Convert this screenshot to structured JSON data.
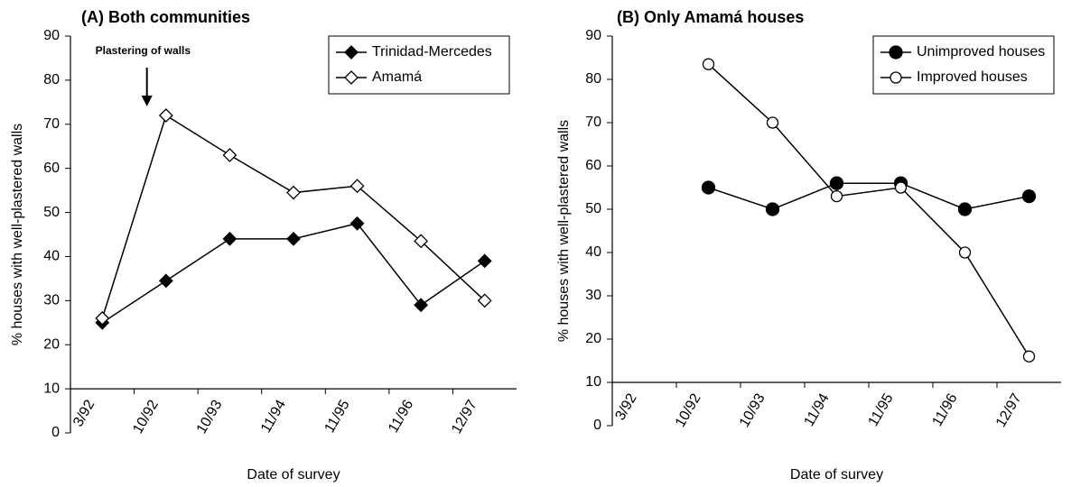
{
  "chart_data": [
    {
      "type": "line",
      "title": "(A) Both communities",
      "xlabel": "Date of survey",
      "ylabel": "% houses with well-plastered walls",
      "categories": [
        "3/92",
        "10/92",
        "10/93",
        "11/94",
        "11/95",
        "11/96",
        "12/97"
      ],
      "series": [
        {
          "name": "Trinidad-Mercedes",
          "color": "#000000",
          "marker": "diamond",
          "filled": true,
          "values": [
            25,
            34.5,
            44,
            44,
            47.5,
            29,
            39
          ]
        },
        {
          "name": "Amamá",
          "color": "#000000",
          "marker": "diamond",
          "filled": false,
          "values": [
            26,
            72,
            63,
            54.5,
            56,
            43.5,
            30
          ]
        }
      ],
      "annotation": "Plastering of walls",
      "ylim": [
        0,
        90
      ],
      "yticks": [
        0,
        10,
        20,
        30,
        40,
        50,
        60,
        70,
        80,
        90
      ],
      "xaxis_crosses": 10,
      "legend": "upper right"
    },
    {
      "type": "line",
      "title": "(B) Only Amamá houses",
      "xlabel": "Date of survey",
      "ylabel": "% houses with well-plastered walls",
      "categories": [
        "3/92",
        "10/92",
        "10/93",
        "11/94",
        "11/95",
        "11/96",
        "12/97"
      ],
      "series": [
        {
          "name": "Unimproved houses",
          "color": "#000000",
          "marker": "circle",
          "filled": true,
          "values": [
            null,
            55,
            50,
            56,
            56,
            50,
            53
          ]
        },
        {
          "name": "Improved houses",
          "color": "#000000",
          "marker": "circle",
          "filled": false,
          "values": [
            null,
            83.5,
            70,
            53,
            55,
            40,
            16
          ]
        }
      ],
      "ylim": [
        0,
        90
      ],
      "yticks": [
        0,
        10,
        20,
        30,
        40,
        50,
        60,
        70,
        80,
        90
      ],
      "xaxis_crosses": 10,
      "legend": "upper right"
    }
  ]
}
